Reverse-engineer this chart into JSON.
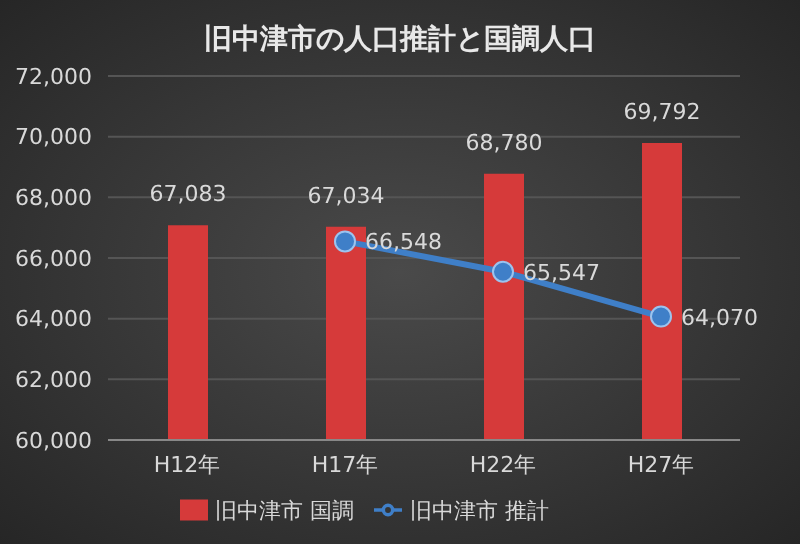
{
  "chart_data": {
    "type": "bar",
    "title": "旧中津市の人口推計と国調人口",
    "categories": [
      "H12年",
      "H17年",
      "H22年",
      "H27年"
    ],
    "series": [
      {
        "name": "旧中津市 国調",
        "color": "#d63a3a",
        "values": [
          67083,
          67034,
          68780,
          69792
        ],
        "value_labels": [
          "67,083",
          "67,034",
          "68,780",
          "69,792"
        ]
      },
      {
        "name": "旧中津市 推計",
        "type": "line",
        "color": "#3f7fc8",
        "values": [
          null,
          66548,
          65547,
          64070
        ],
        "value_labels": [
          null,
          "66,548",
          "65,547",
          "64,070"
        ],
        "marker": "circle"
      }
    ],
    "ylim": [
      60000,
      72000
    ],
    "yticks": [
      {
        "value": 60000,
        "label": "60,000"
      },
      {
        "value": 62000,
        "label": "62,000"
      },
      {
        "value": 64000,
        "label": "64,000"
      },
      {
        "value": 66000,
        "label": "66,000"
      },
      {
        "value": 68000,
        "label": "68,000"
      },
      {
        "value": 70000,
        "label": "70,000"
      },
      {
        "value": 72000,
        "label": "72,000"
      }
    ],
    "grid": "y",
    "legend": "bottom"
  }
}
